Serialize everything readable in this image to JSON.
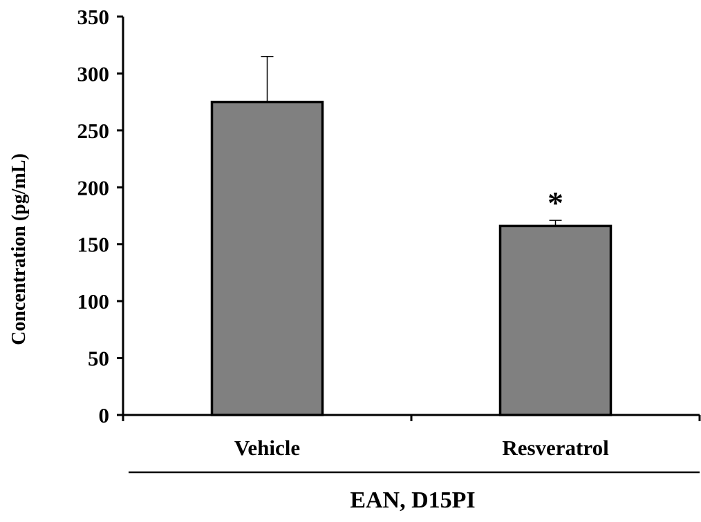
{
  "chart_data": {
    "type": "bar",
    "title": "",
    "xlabel": "",
    "ylabel": "Concentration (pg/mL)",
    "group_label": "EAN, D15PI",
    "categories": [
      "Vehicle",
      "Resveratrol"
    ],
    "values": [
      275,
      166
    ],
    "error_upper": [
      40,
      5
    ],
    "significance": [
      "",
      "*"
    ],
    "ylim": [
      0,
      350
    ],
    "yticks": [
      0,
      50,
      100,
      150,
      200,
      250,
      300,
      350
    ],
    "ytick_labels": [
      "0",
      "50",
      "100",
      "150",
      "200",
      "250",
      "300",
      "350"
    ],
    "bar_color": "#808080",
    "grid": false
  }
}
